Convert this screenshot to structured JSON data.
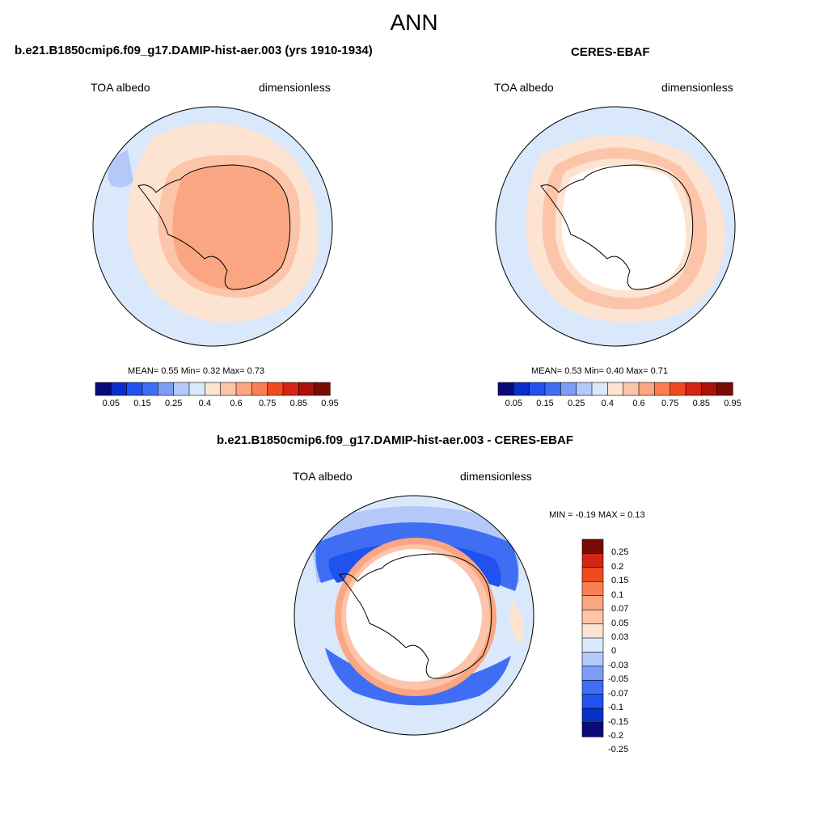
{
  "main_title": "ANN",
  "palette": {
    "abs": [
      "#0a0a7a",
      "#0a2fc8",
      "#1f52ee",
      "#3f6ef5",
      "#7d9ef7",
      "#b4c9fa",
      "#d9e8fb",
      "#fde3d2",
      "#fcc4a8",
      "#fba682",
      "#fa7f55",
      "#f04a1f",
      "#d52414",
      "#a81208",
      "#7a0a04"
    ],
    "diff": [
      "#0a0a7a",
      "#0a2fc8",
      "#1f52ee",
      "#3f6ef5",
      "#7d9ef7",
      "#b4c9fa",
      "#d9e8fb",
      "#fde3d2",
      "#fcc4a8",
      "#fba682",
      "#fa7f55",
      "#f04a1f",
      "#d52414",
      "#7a0a04"
    ]
  },
  "chart_data": [
    {
      "type": "heatmap",
      "projection": "south-polar-stereographic",
      "title": "b.e21.B1850cmip6.f09_g17.DAMIP-hist-aer.003 (yrs 1910-1934)",
      "left_label": "TOA albedo",
      "right_label": "dimensionless",
      "stats_text": "MEAN=   0.55   Min=   0.32   Max=    0.73",
      "mean": 0.55,
      "min": 0.32,
      "max": 0.73,
      "colorbar": {
        "orientation": "horizontal",
        "levels": [
          0.05,
          0.1,
          0.15,
          0.2,
          0.25,
          0.3,
          0.4,
          0.5,
          0.6,
          0.7,
          0.75,
          0.8,
          0.85,
          0.9,
          0.95
        ],
        "labels": [
          "0.05",
          "0.15",
          "0.25",
          "0.4",
          "0.6",
          "0.75",
          "0.85",
          "0.95"
        ]
      }
    },
    {
      "type": "heatmap",
      "projection": "south-polar-stereographic",
      "title": "CERES-EBAF",
      "left_label": "TOA albedo",
      "right_label": "dimensionless",
      "stats_text": "MEAN=   0.53   Min=   0.40   Max=    0.71",
      "mean": 0.53,
      "min": 0.4,
      "max": 0.71,
      "colorbar": {
        "orientation": "horizontal",
        "levels": [
          0.05,
          0.1,
          0.15,
          0.2,
          0.25,
          0.3,
          0.4,
          0.5,
          0.6,
          0.7,
          0.75,
          0.8,
          0.85,
          0.9,
          0.95
        ],
        "labels": [
          "0.05",
          "0.15",
          "0.25",
          "0.4",
          "0.6",
          "0.75",
          "0.85",
          "0.95"
        ]
      }
    },
    {
      "type": "heatmap",
      "projection": "south-polar-stereographic",
      "title": "b.e21.B1850cmip6.f09_g17.DAMIP-hist-aer.003 - CERES-EBAF",
      "left_label": "TOA albedo",
      "right_label": "dimensionless",
      "stats_text": "MIN =  -0.19 MAX =   0.13",
      "min": -0.19,
      "max": 0.13,
      "colorbar": {
        "orientation": "vertical",
        "labels": [
          "0.25",
          "0.2",
          "0.15",
          "0.1",
          "0.07",
          "0.05",
          "0.03",
          "0",
          "-0.03",
          "-0.05",
          "-0.07",
          "-0.1",
          "-0.15",
          "-0.2",
          "-0.25"
        ]
      }
    }
  ]
}
